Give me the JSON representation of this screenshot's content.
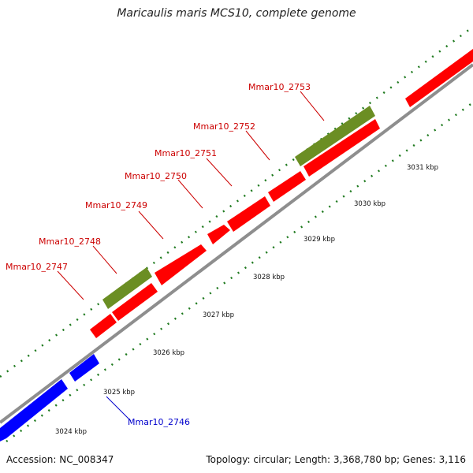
{
  "title": "Maricaulis maris MCS10, complete genome",
  "footer": {
    "accession": "Accession: NC_008347",
    "summary": "Topology: circular; Length: 3,368,780 bp; Genes: 3,116"
  },
  "colors": {
    "forward_cds": "#ff0000",
    "reverse_cds": "#0000ff",
    "other_feature": "#6b8e23",
    "backbone": "#888888",
    "ticks": "#1f7a1f"
  },
  "gene_labels": [
    {
      "name": "Mmar10_2747",
      "color": "#cc0000"
    },
    {
      "name": "Mmar10_2748",
      "color": "#cc0000"
    },
    {
      "name": "Mmar10_2749",
      "color": "#cc0000"
    },
    {
      "name": "Mmar10_2750",
      "color": "#cc0000"
    },
    {
      "name": "Mmar10_2751",
      "color": "#cc0000"
    },
    {
      "name": "Mmar10_2752",
      "color": "#cc0000"
    },
    {
      "name": "Mmar10_2753",
      "color": "#cc0000"
    },
    {
      "name": "Mmar10_2746",
      "color": "#0000cc"
    }
  ],
  "scale_labels": [
    "3024 kbp",
    "3025 kbp",
    "3026 kbp",
    "3027 kbp",
    "3028 kbp",
    "3029 kbp",
    "3030 kbp",
    "3031 kbp"
  ]
}
